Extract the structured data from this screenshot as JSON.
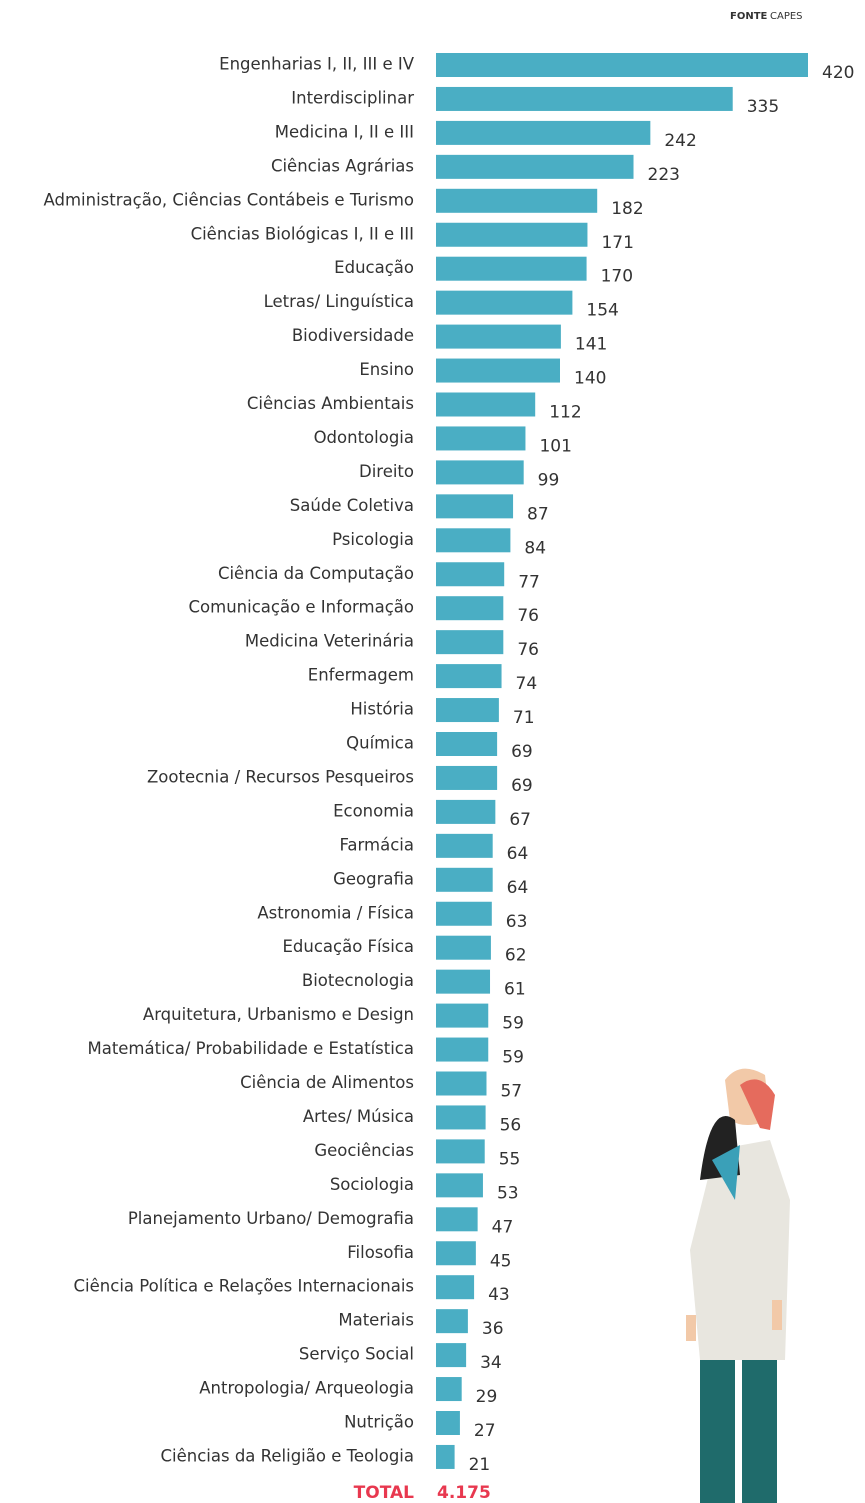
{
  "chart_data": {
    "type": "barh",
    "source_label": "FONTE",
    "source": "CAPES",
    "color": "#4aaec4",
    "categories": [
      "Engenharias I, II, III e IV",
      "Interdisciplinar",
      "Medicina I, II e III",
      "Ciências Agrárias",
      "Administração, Ciências Contábeis e Turismo",
      "Ciências Biológicas I, II e III",
      "Educação",
      "Letras/ Linguística",
      "Biodiversidade",
      "Ensino",
      "Ciências Ambientais",
      "Odontologia",
      "Direito",
      "Saúde Coletiva",
      "Psicologia",
      "Ciência da Computação",
      "Comunicação e Informação",
      "Medicina Veterinária",
      "Enfermagem",
      "História",
      "Química",
      "Zootecnia / Recursos Pesqueiros",
      "Economia",
      "Farmácia",
      "Geografia",
      "Astronomia / Física",
      "Educação Física",
      "Biotecnologia",
      "Arquitetura, Urbanismo e Design",
      "Matemática/ Probabilidade e Estatística",
      "Ciência de Alimentos",
      "Artes/ Música",
      "Geociências",
      "Sociologia",
      "Planejamento Urbano/ Demografia",
      "Filosofia",
      "Ciência Política e Relações Internacionais",
      "Materiais",
      "Serviço Social",
      "Antropologia/ Arqueologia",
      "Nutrição",
      "Ciências da Religião e Teologia"
    ],
    "values": [
      420,
      335,
      242,
      223,
      182,
      171,
      170,
      154,
      141,
      140,
      112,
      101,
      99,
      87,
      84,
      77,
      76,
      76,
      74,
      71,
      69,
      69,
      67,
      64,
      64,
      63,
      62,
      61,
      59,
      59,
      57,
      56,
      55,
      53,
      47,
      45,
      43,
      36,
      34,
      29,
      27,
      21
    ],
    "total_label": "TOTAL",
    "total_text": "4.175"
  }
}
